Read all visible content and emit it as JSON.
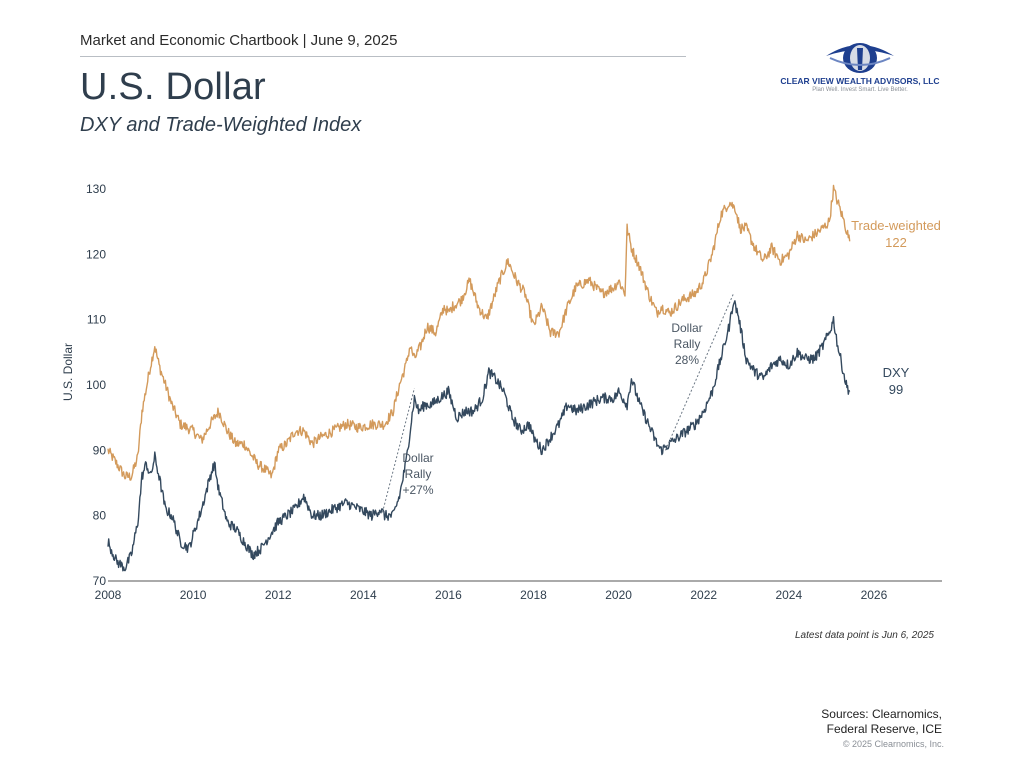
{
  "header": {
    "line": "Market and Economic Chartbook | June 9, 2025",
    "title": "U.S. Dollar",
    "subtitle": "DXY and Trade-Weighted Index"
  },
  "logo": {
    "name": "Clear View Wealth Advisors, LLC",
    "tagline": "Plan Well. Invest Smart. Live Better."
  },
  "chart_data": {
    "type": "line",
    "ylabel": "U.S. Dollar",
    "xlim": [
      2008,
      2027.6
    ],
    "ylim": [
      70,
      132
    ],
    "y_ticks": [
      70,
      80,
      90,
      100,
      110,
      120,
      130
    ],
    "x_ticks": [
      2008,
      2010,
      2012,
      2014,
      2016,
      2018,
      2020,
      2022,
      2024,
      2026
    ],
    "grid": false,
    "series": [
      {
        "name": "Trade-weighted",
        "color": "#d39a5b",
        "x": [
          2008.0,
          2008.2,
          2008.4,
          2008.55,
          2008.7,
          2008.8,
          2009.0,
          2009.1,
          2009.2,
          2009.35,
          2009.5,
          2009.7,
          2010.0,
          2010.2,
          2010.4,
          2010.6,
          2010.8,
          2011.0,
          2011.2,
          2011.5,
          2011.7,
          2011.85,
          2012.0,
          2012.2,
          2012.4,
          2012.6,
          2012.8,
          2013.0,
          2013.3,
          2013.6,
          2013.9,
          2014.2,
          2014.5,
          2014.7,
          2014.85,
          2015.0,
          2015.1,
          2015.2,
          2015.35,
          2015.5,
          2015.7,
          2015.9,
          2016.0,
          2016.1,
          2016.3,
          2016.5,
          2016.7,
          2016.9,
          2017.0,
          2017.2,
          2017.4,
          2017.6,
          2017.8,
          2018.0,
          2018.2,
          2018.4,
          2018.6,
          2018.8,
          2019.0,
          2019.3,
          2019.6,
          2019.9,
          2020.0,
          2020.15,
          2020.2,
          2020.3,
          2020.5,
          2020.7,
          2020.9,
          2021.0,
          2021.2,
          2021.5,
          2021.8,
          2022.0,
          2022.2,
          2022.4,
          2022.6,
          2022.75,
          2022.85,
          2023.0,
          2023.2,
          2023.4,
          2023.6,
          2023.8,
          2024.0,
          2024.2,
          2024.4,
          2024.6,
          2024.8,
          2024.95,
          2025.05,
          2025.15,
          2025.3,
          2025.43
        ],
        "values": [
          90,
          88,
          86,
          86,
          89,
          96,
          103,
          106,
          103,
          100,
          97,
          94,
          93,
          91.5,
          94,
          96,
          93,
          91,
          91,
          88,
          87,
          86,
          90,
          91,
          93,
          93,
          91,
          92,
          93,
          94,
          93.5,
          94,
          94,
          96,
          100,
          103,
          106,
          104,
          106,
          109,
          108,
          112,
          111,
          112,
          113,
          116,
          112,
          110,
          112,
          116,
          119,
          116,
          114,
          109,
          112,
          108,
          108,
          112,
          115,
          116,
          114,
          115,
          116,
          114,
          124,
          121,
          118,
          114,
          111,
          112,
          111,
          113,
          114,
          116,
          120,
          126,
          128,
          127,
          124,
          124,
          121,
          119,
          121,
          119,
          120,
          123,
          122,
          123,
          124,
          125,
          130,
          128,
          125,
          122
        ]
      },
      {
        "name": "DXY",
        "color": "#34495e",
        "x": [
          2008.0,
          2008.2,
          2008.4,
          2008.55,
          2008.7,
          2008.8,
          2008.9,
          2009.0,
          2009.1,
          2009.2,
          2009.35,
          2009.5,
          2009.7,
          2009.9,
          2010.0,
          2010.2,
          2010.4,
          2010.5,
          2010.6,
          2010.8,
          2011.0,
          2011.2,
          2011.4,
          2011.6,
          2011.8,
          2012.0,
          2012.2,
          2012.4,
          2012.6,
          2012.8,
          2013.0,
          2013.3,
          2013.6,
          2013.9,
          2014.2,
          2014.4,
          2014.5,
          2014.7,
          2014.85,
          2015.0,
          2015.1,
          2015.2,
          2015.3,
          2015.45,
          2015.6,
          2015.8,
          2016.0,
          2016.2,
          2016.4,
          2016.6,
          2016.8,
          2016.95,
          2017.1,
          2017.3,
          2017.5,
          2017.7,
          2017.9,
          2018.0,
          2018.2,
          2018.4,
          2018.6,
          2018.8,
          2019.0,
          2019.3,
          2019.6,
          2019.9,
          2020.0,
          2020.2,
          2020.3,
          2020.5,
          2020.7,
          2020.9,
          2021.0,
          2021.2,
          2021.4,
          2021.6,
          2021.8,
          2022.0,
          2022.2,
          2022.4,
          2022.6,
          2022.7,
          2022.8,
          2023.0,
          2023.2,
          2023.4,
          2023.6,
          2023.8,
          2024.0,
          2024.2,
          2024.4,
          2024.6,
          2024.8,
          2024.95,
          2025.05,
          2025.15,
          2025.25,
          2025.35,
          2025.43
        ],
        "values": [
          76,
          73,
          72,
          74,
          79,
          86,
          88,
          86,
          89,
          86,
          81,
          80,
          76,
          75,
          77,
          81,
          86,
          88,
          84,
          79,
          78,
          76,
          74,
          75,
          77,
          79,
          80,
          81,
          83,
          80,
          80,
          81,
          82,
          81,
          80,
          81,
          80,
          80,
          83,
          88,
          93,
          98,
          96,
          97,
          97,
          98,
          99,
          95,
          96,
          96,
          98,
          102,
          101,
          99,
          95,
          93,
          94,
          92,
          90,
          92,
          94,
          97,
          96,
          97,
          98,
          98,
          99,
          97,
          101,
          97,
          94,
          91,
          90,
          91,
          92,
          93,
          94,
          96,
          99,
          104,
          109,
          113,
          111,
          104,
          102,
          101,
          103,
          104,
          103,
          105,
          104,
          104,
          106,
          108,
          110,
          106,
          103,
          100,
          99
        ]
      }
    ],
    "annotations": [
      {
        "id": "rally1",
        "lines": [
          "Dollar",
          "Rally",
          "+27%"
        ],
        "x0": 2014.45,
        "y0": 80.5,
        "x1": 2015.2,
        "y1": 99.5
      },
      {
        "id": "rally2",
        "lines": [
          "Dollar",
          "Rally",
          "28%"
        ],
        "x0": 2021.1,
        "y0": 90,
        "x1": 2022.7,
        "y1": 114
      }
    ],
    "end_labels": [
      {
        "id": "tw",
        "lines": [
          "Trade-weighted",
          "122"
        ]
      },
      {
        "id": "dxy",
        "lines": [
          "DXY",
          "99"
        ]
      }
    ]
  },
  "footer": {
    "note": "Latest data point is Jun 6, 2025",
    "sources_line1": "Sources: Clearnomics,",
    "sources_line2": "Federal Reserve, ICE",
    "copyright": "© 2025 Clearnomics, Inc."
  }
}
